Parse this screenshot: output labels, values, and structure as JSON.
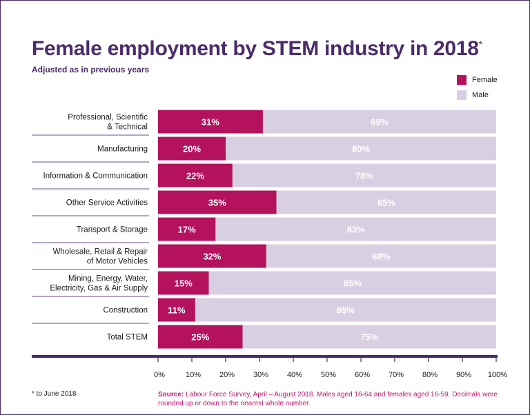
{
  "title": "Female employment by STEM industry in 2018",
  "title_marker": "*",
  "subtitle": "Adjusted as in previous years",
  "legend": {
    "female_label": "Female",
    "male_label": "Male"
  },
  "colors": {
    "female": "#b5125e",
    "male": "#d8cfe2",
    "axis": "#4a2c6a",
    "separator": "#6a4f86"
  },
  "footnote": "* to June 2018",
  "source": {
    "label": "Source:",
    "text": "Labour Force Survey, April – August 2018. Males aged 16-64 and females aged 16-59. Decimals were rounded up or down to the nearest whole number."
  },
  "chart_data": {
    "type": "bar",
    "orientation": "horizontal",
    "stacked": true,
    "categories": [
      "Professional, Scientific & Technical",
      "Manufacturing",
      "Information & Communication",
      "Other Service Activities",
      "Transport & Storage",
      "Wholesale, Retail & Repair of Motor Vehicles",
      "Mining, Energy, Water, Electricity, Gas & Air Supply",
      "Construction",
      "Total STEM"
    ],
    "category_lines": [
      [
        "Professional, Scientific",
        "& Technical"
      ],
      [
        "Manufacturing"
      ],
      [
        "Information & Communication"
      ],
      [
        "Other Service Activities"
      ],
      [
        "Transport & Storage"
      ],
      [
        "Wholesale, Retail & Repair",
        "of Motor Vehicles"
      ],
      [
        "Mining, Energy, Water,",
        "Electricity, Gas & Air Supply"
      ],
      [
        "Construction"
      ],
      [
        "Total STEM"
      ]
    ],
    "series": [
      {
        "name": "Female",
        "values": [
          31,
          20,
          22,
          35,
          17,
          32,
          15,
          11,
          25
        ],
        "labels": [
          "31%",
          "20%",
          "22%",
          "35%",
          "17%",
          "32%",
          "15%",
          "11%",
          "25%"
        ]
      },
      {
        "name": "Male",
        "values": [
          69,
          80,
          78,
          65,
          83,
          68,
          85,
          89,
          75
        ],
        "labels": [
          "69%",
          "80%",
          "78%",
          "65%",
          "83%",
          "68%",
          "85%",
          "89%",
          "75%"
        ]
      }
    ],
    "xlim": [
      0,
      100
    ],
    "xticks": [
      "0%",
      "10%",
      "20%",
      "30%",
      "40%",
      "50%",
      "60%",
      "70%",
      "80%",
      "90%",
      "100%"
    ],
    "legend_position": "top-right",
    "grid": false
  }
}
